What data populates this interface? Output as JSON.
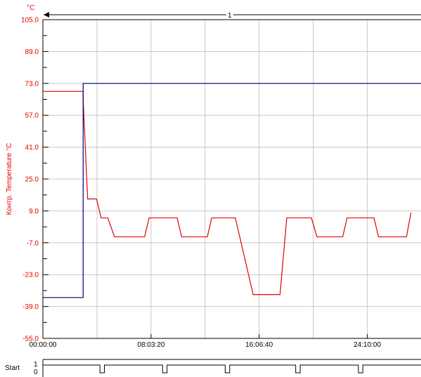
{
  "chart_data": {
    "type": "line",
    "unit": "°C",
    "ylabel": "Контр. Temperature °C",
    "ylim": [
      -55.0,
      105.0
    ],
    "yticks": [
      "105.0",
      "89.0",
      "73.0",
      "57.0",
      "41.0",
      "25.0",
      "9.0",
      "-7.0",
      "-23.0",
      "-39.0",
      "-55.0"
    ],
    "xlim": [
      "00:00:00",
      "28:10:00"
    ],
    "xticks": [
      "00:00:00",
      "08:03:20",
      "16:06:40",
      "24:10:00"
    ],
    "marker": "1",
    "grid": true,
    "series": [
      {
        "color": "#e00000",
        "points": [
          [
            "00:00:00",
            69.0
          ],
          [
            "03:00:00",
            69.0
          ],
          [
            "03:00:00",
            65.0
          ],
          [
            "03:20:00",
            15.0
          ],
          [
            "04:00:00",
            15.0
          ],
          [
            "04:20:00",
            5.5
          ],
          [
            "04:50:00",
            5.5
          ],
          [
            "05:20:00",
            -4.0
          ],
          [
            "07:35:00",
            -4.0
          ],
          [
            "07:55:00",
            5.5
          ],
          [
            "10:00:00",
            5.5
          ],
          [
            "10:20:00",
            -4.0
          ],
          [
            "12:15:00",
            -4.0
          ],
          [
            "12:35:00",
            5.5
          ],
          [
            "14:20:00",
            5.5
          ],
          [
            "15:40:00",
            -33.0
          ],
          [
            "17:40:00",
            -33.0
          ],
          [
            "18:10:00",
            5.5
          ],
          [
            "20:00:00",
            5.5
          ],
          [
            "20:25:00",
            -4.0
          ],
          [
            "22:20:00",
            -4.0
          ],
          [
            "22:40:00",
            5.5
          ],
          [
            "24:40:00",
            5.5
          ],
          [
            "25:00:00",
            -4.0
          ],
          [
            "27:05:00",
            -4.0
          ],
          [
            "27:25:00",
            8.0
          ]
        ]
      },
      {
        "color": "#000080",
        "points": [
          [
            "00:00:00",
            -34.5
          ],
          [
            "03:00:00",
            -34.5
          ],
          [
            "03:00:00",
            73.0
          ],
          [
            "28:10:00",
            73.0
          ]
        ]
      }
    ],
    "digital": {
      "label": "Start",
      "levels": [
        "1",
        "0"
      ],
      "pulses_low": [
        [
          "04:15:00",
          "04:35:00"
        ],
        [
          "08:55:00",
          "09:15:00"
        ],
        [
          "13:35:00",
          "13:55:00"
        ],
        [
          "18:50:00",
          "19:10:00"
        ],
        [
          "23:30:00",
          "23:50:00"
        ]
      ]
    }
  }
}
